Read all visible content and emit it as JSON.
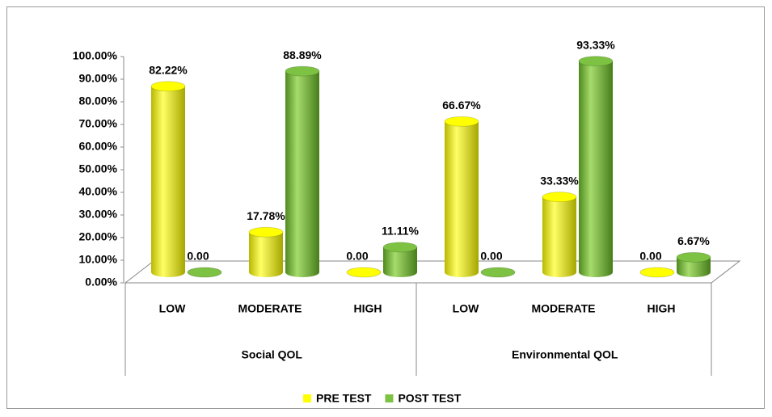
{
  "chart_data": {
    "type": "bar",
    "groups": [
      "Social QOL",
      "Environmental QOL"
    ],
    "categories": [
      "LOW",
      "MODERATE",
      "HIGH",
      "LOW",
      "MODERATE",
      "HIGH"
    ],
    "series": [
      {
        "name": "PRE TEST",
        "color": "#ffff00",
        "values": [
          82.22,
          17.78,
          0,
          66.67,
          33.33,
          0
        ],
        "value_labels": [
          "82.22%",
          "17.78%",
          "0.00",
          "66.67%",
          "33.33%",
          "0.00"
        ]
      },
      {
        "name": "POST TEST",
        "color": "#7dc242",
        "values": [
          0,
          88.89,
          11.11,
          0,
          93.33,
          6.67
        ],
        "value_labels": [
          "0.00",
          "88.89%",
          "11.11%",
          "0.00",
          "93.33%",
          "6.67%"
        ]
      }
    ],
    "ylim": [
      0,
      100
    ],
    "yticks": [
      {
        "value": 0,
        "label": "0.00%"
      },
      {
        "value": 10,
        "label": "10.00%"
      },
      {
        "value": 20,
        "label": "20.00%"
      },
      {
        "value": 30,
        "label": "30.00%"
      },
      {
        "value": 40,
        "label": "40.00%"
      },
      {
        "value": 50,
        "label": "50.00%"
      },
      {
        "value": 60,
        "label": "60.00%"
      },
      {
        "value": 70,
        "label": "70.00%"
      },
      {
        "value": 80,
        "label": "80.00%"
      },
      {
        "value": 90,
        "label": "90.00%"
      },
      {
        "value": 100,
        "label": "100.00%"
      }
    ],
    "legend": "bottom"
  }
}
